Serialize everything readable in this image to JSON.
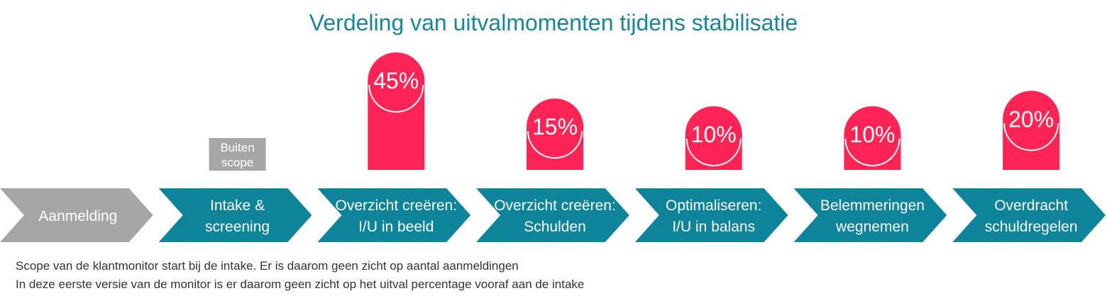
{
  "colors": {
    "title": "#17869a",
    "bar": "#fe2455",
    "out_of_scope": "#a6a6a6",
    "step_teal": "#0d8499",
    "step_grey": "#a6a6a6"
  },
  "chart_data": {
    "type": "bar",
    "title": "Verdeling van uitvalmomenten tijdens stabilisatie",
    "categories": [
      [
        "Aanmelding"
      ],
      [
        "Intake &",
        "screening"
      ],
      [
        "Overzicht creëren:",
        "I/U in beeld"
      ],
      [
        "Overzicht creëren:",
        "Schulden"
      ],
      [
        "Optimaliseren:",
        "I/U in balans"
      ],
      [
        "Belemmeringen",
        "wegnemen"
      ],
      [
        "Overdracht",
        "schuldregelen"
      ]
    ],
    "values": [
      null,
      null,
      45,
      15,
      10,
      10,
      20
    ],
    "value_labels": [
      "",
      "",
      "45%",
      "15%",
      "10%",
      "10%",
      "20%"
    ],
    "out_of_scope": {
      "category_index": 1,
      "label": [
        "Buiten",
        "scope"
      ]
    },
    "greyed_category_index": 0,
    "ylim": [
      0,
      50
    ]
  },
  "footnotes": [
    "Scope van de klantmonitor start bij de intake. Er is daarom geen zicht op aantal aanmeldingen",
    "In deze eerste versie van de monitor is er daarom geen zicht op het uitval percentage vooraf aan de intake"
  ]
}
